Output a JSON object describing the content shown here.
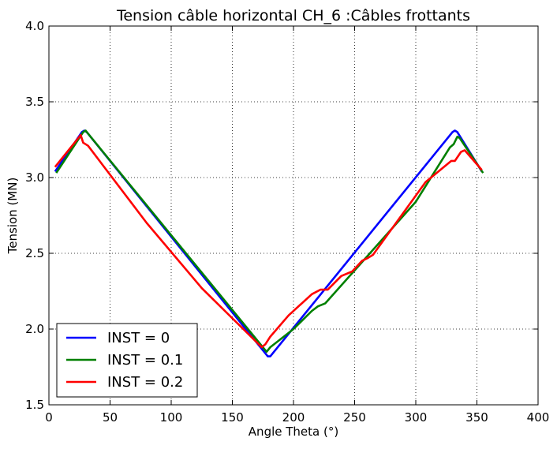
{
  "chart_data": {
    "type": "line",
    "title": "Tension câble horizontal CH_6 :Câbles frottants",
    "xlabel": "Angle Theta (°)",
    "ylabel": "Tension (MN)",
    "xlim": [
      0,
      400
    ],
    "ylim": [
      1.5,
      4.0
    ],
    "xticks": [
      0,
      50,
      100,
      150,
      200,
      250,
      300,
      350,
      400
    ],
    "yticks": [
      1.5,
      2.0,
      2.5,
      3.0,
      3.5,
      4.0
    ],
    "xtick_labels": [
      "0",
      "50",
      "100",
      "150",
      "200",
      "250",
      "300",
      "350",
      "400"
    ],
    "ytick_labels": [
      "1.5",
      "2.0",
      "2.5",
      "3.0",
      "3.5",
      "4.0"
    ],
    "grid": true,
    "legend_position": "lower-left",
    "series": [
      {
        "name": "INST = 0",
        "color": "#0000ff",
        "x": [
          5,
          27,
          29,
          31,
          179,
          181,
          330,
          332,
          334,
          354
        ],
        "y": [
          3.04,
          3.3,
          3.31,
          3.3,
          1.82,
          1.82,
          3.3,
          3.31,
          3.3,
          3.04
        ]
      },
      {
        "name": "INST = 0.1",
        "color": "#008000",
        "x": [
          6,
          28,
          30,
          32,
          178,
          181,
          200,
          215,
          220,
          226,
          300,
          328,
          331,
          334,
          336,
          355
        ],
        "y": [
          3.03,
          3.3,
          3.31,
          3.29,
          1.85,
          1.88,
          2.0,
          2.12,
          2.15,
          2.17,
          2.84,
          3.2,
          3.22,
          3.27,
          3.26,
          3.03
        ]
      },
      {
        "name": "INST = 0.2",
        "color": "#ff0000",
        "x": [
          5,
          26,
          28,
          32,
          80,
          125,
          174,
          177,
          181,
          196,
          215,
          222,
          228,
          239,
          248,
          256,
          261,
          265,
          308,
          329,
          332,
          337,
          340,
          354
        ],
        "y": [
          3.07,
          3.28,
          3.23,
          3.21,
          2.7,
          2.27,
          1.88,
          1.9,
          1.95,
          2.09,
          2.23,
          2.26,
          2.26,
          2.35,
          2.38,
          2.45,
          2.47,
          2.49,
          2.97,
          3.11,
          3.11,
          3.17,
          3.18,
          3.05
        ]
      }
    ]
  }
}
